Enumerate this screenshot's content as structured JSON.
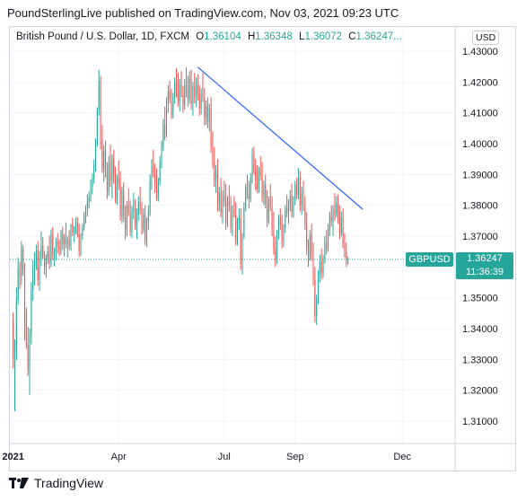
{
  "header": {
    "publisher": "PoundSterlingLive published on TradingView.com, Nov 03, 2021 09:23 UTC"
  },
  "legend": {
    "title": "British Pound / U.S. Dollar, 1D, FXCM",
    "o_label": "O",
    "o_value": "1.36104",
    "h_label": "H",
    "h_value": "1.36348",
    "l_label": "L",
    "l_value": "1.36072",
    "c_label": "C",
    "c_value": "1.36247...",
    "value_color": "#26a69a"
  },
  "currency_button": "USD",
  "symbol_tag": "GBPUSD",
  "price_tag": {
    "price": "1.36247",
    "countdown": "11:36:39"
  },
  "footer": {
    "brand": "TradingView",
    "logo_icon": "tradingview-logo-icon"
  },
  "colors": {
    "up": "#26a69a",
    "down": "#ef5350",
    "trendline": "#2962ff",
    "last_price": "#26a69a"
  },
  "chart_data": {
    "type": "candlestick",
    "y_ticks": [
      "1.43000",
      "1.42000",
      "1.41000",
      "1.40000",
      "1.39000",
      "1.38000",
      "1.37000",
      "1.36000",
      "1.35000",
      "1.34000",
      "1.33000",
      "1.32000",
      "1.31000"
    ],
    "ylim": [
      1.303,
      1.436
    ],
    "x_labels": [
      {
        "label": "2021",
        "x": 0,
        "bold": true
      },
      {
        "label": "Apr",
        "x": 64
      },
      {
        "label": "Jul",
        "x": 128
      },
      {
        "label": "Sep",
        "x": 171
      },
      {
        "label": "Dec",
        "x": 236
      }
    ],
    "xlim": [
      -2,
      268
    ],
    "last_price": 1.36247,
    "trendline": {
      "from": [
        112,
        1.4248
      ],
      "to": [
        212,
        1.3787
      ]
    },
    "candles": [
      [
        1.3424,
        1.3452,
        1.3271,
        1.3305
      ],
      [
        1.3305,
        1.3365,
        1.3132,
        1.332
      ],
      [
        1.332,
        1.3534,
        1.3298,
        1.3494
      ],
      [
        1.3494,
        1.363,
        1.3478,
        1.3596
      ],
      [
        1.3596,
        1.3617,
        1.3527,
        1.3572
      ],
      [
        1.3572,
        1.3684,
        1.3542,
        1.3658
      ],
      [
        1.3658,
        1.3672,
        1.3571,
        1.3591
      ],
      [
        1.3591,
        1.3613,
        1.3361,
        1.3453
      ],
      [
        1.3453,
        1.3468,
        1.3334,
        1.3348
      ],
      [
        1.3348,
        1.3406,
        1.3247,
        1.3265
      ],
      [
        1.3265,
        1.34,
        1.3185,
        1.3382
      ],
      [
        1.3382,
        1.3551,
        1.3349,
        1.3525
      ],
      [
        1.3525,
        1.3622,
        1.3491,
        1.3592
      ],
      [
        1.3592,
        1.3647,
        1.354,
        1.3613
      ],
      [
        1.3613,
        1.3672,
        1.359,
        1.3654
      ],
      [
        1.3654,
        1.3683,
        1.3538,
        1.3559
      ],
      [
        1.3559,
        1.3652,
        1.3523,
        1.3628
      ],
      [
        1.3628,
        1.3715,
        1.3603,
        1.367
      ],
      [
        1.367,
        1.3697,
        1.3627,
        1.3634
      ],
      [
        1.3634,
        1.3652,
        1.3576,
        1.3601
      ],
      [
        1.3601,
        1.3642,
        1.3564,
        1.362
      ],
      [
        1.362,
        1.3668,
        1.3609,
        1.3651
      ],
      [
        1.3651,
        1.3702,
        1.3593,
        1.3612
      ],
      [
        1.3612,
        1.3722,
        1.36,
        1.3705
      ],
      [
        1.3705,
        1.3729,
        1.3622,
        1.3639
      ],
      [
        1.3639,
        1.3662,
        1.3602,
        1.3645
      ],
      [
        1.3645,
        1.3694,
        1.362,
        1.3682
      ],
      [
        1.3682,
        1.371,
        1.3643,
        1.3671
      ],
      [
        1.3671,
        1.369,
        1.3635,
        1.3655
      ],
      [
        1.3655,
        1.372,
        1.364,
        1.3708
      ],
      [
        1.3708,
        1.373,
        1.3655,
        1.3672
      ],
      [
        1.3672,
        1.3706,
        1.3634,
        1.3698
      ],
      [
        1.3698,
        1.3745,
        1.366,
        1.3674
      ],
      [
        1.3674,
        1.37,
        1.363,
        1.3689
      ],
      [
        1.3689,
        1.372,
        1.3655,
        1.3665
      ],
      [
        1.3665,
        1.374,
        1.3652,
        1.3735
      ],
      [
        1.3735,
        1.376,
        1.37,
        1.3712
      ],
      [
        1.3712,
        1.3733,
        1.368,
        1.3728
      ],
      [
        1.3728,
        1.376,
        1.3705,
        1.3745
      ],
      [
        1.3745,
        1.3763,
        1.3695,
        1.3706
      ],
      [
        1.3706,
        1.374,
        1.3632,
        1.3652
      ],
      [
        1.3652,
        1.3709,
        1.3635,
        1.3703
      ],
      [
        1.3703,
        1.374,
        1.3688,
        1.3727
      ],
      [
        1.3727,
        1.378,
        1.3718,
        1.3764
      ],
      [
        1.3764,
        1.38,
        1.3741,
        1.3792
      ],
      [
        1.3792,
        1.3835,
        1.3764,
        1.3812
      ],
      [
        1.3812,
        1.3845,
        1.3789,
        1.3825
      ],
      [
        1.3825,
        1.3883,
        1.3811,
        1.386
      ],
      [
        1.386,
        1.3903,
        1.3835,
        1.3888
      ],
      [
        1.3888,
        1.3948,
        1.387,
        1.393
      ],
      [
        1.393,
        1.4017,
        1.391,
        1.4
      ],
      [
        1.4,
        1.4118,
        1.399,
        1.411
      ],
      [
        1.411,
        1.424,
        1.409,
        1.4205
      ],
      [
        1.4205,
        1.422,
        1.398,
        1.4015
      ],
      [
        1.4015,
        1.406,
        1.3905,
        1.392
      ],
      [
        1.392,
        1.3995,
        1.3875,
        1.3975
      ],
      [
        1.3975,
        1.401,
        1.389,
        1.3905
      ],
      [
        1.3905,
        1.394,
        1.382,
        1.3845
      ],
      [
        1.3845,
        1.396,
        1.383,
        1.394
      ],
      [
        1.394,
        1.3998,
        1.386,
        1.388
      ],
      [
        1.388,
        1.3965,
        1.3822,
        1.3952
      ],
      [
        1.3952,
        1.398,
        1.387,
        1.3896
      ],
      [
        1.3896,
        1.3925,
        1.3806,
        1.3822
      ],
      [
        1.3822,
        1.39,
        1.3801,
        1.3888
      ],
      [
        1.3888,
        1.3946,
        1.385,
        1.3869
      ],
      [
        1.3869,
        1.391,
        1.375,
        1.3765
      ],
      [
        1.3765,
        1.386,
        1.374,
        1.385
      ],
      [
        1.385,
        1.3875,
        1.3746,
        1.376
      ],
      [
        1.376,
        1.38,
        1.3689,
        1.372
      ],
      [
        1.372,
        1.3815,
        1.37,
        1.38
      ],
      [
        1.38,
        1.3855,
        1.3765,
        1.3775
      ],
      [
        1.3775,
        1.3815,
        1.37,
        1.3715
      ],
      [
        1.3715,
        1.3798,
        1.3694,
        1.3782
      ],
      [
        1.3782,
        1.384,
        1.3755,
        1.379
      ],
      [
        1.379,
        1.382,
        1.372,
        1.3735
      ],
      [
        1.3735,
        1.379,
        1.369,
        1.377
      ],
      [
        1.377,
        1.383,
        1.375,
        1.3812
      ],
      [
        1.3812,
        1.386,
        1.377,
        1.3785
      ],
      [
        1.3785,
        1.381,
        1.3705,
        1.3725
      ],
      [
        1.3725,
        1.379,
        1.371,
        1.377
      ],
      [
        1.377,
        1.38,
        1.367,
        1.369
      ],
      [
        1.369,
        1.376,
        1.3665,
        1.3748
      ],
      [
        1.3748,
        1.38,
        1.372,
        1.378
      ],
      [
        1.378,
        1.39,
        1.3765,
        1.388
      ],
      [
        1.388,
        1.395,
        1.385,
        1.3925
      ],
      [
        1.3925,
        1.398,
        1.389,
        1.3905
      ],
      [
        1.3905,
        1.3935,
        1.384,
        1.387
      ],
      [
        1.387,
        1.392,
        1.3815,
        1.383
      ],
      [
        1.383,
        1.389,
        1.3812,
        1.3878
      ],
      [
        1.3878,
        1.396,
        1.3865,
        1.394
      ],
      [
        1.394,
        1.401,
        1.392,
        1.399
      ],
      [
        1.399,
        1.408,
        1.3975,
        1.406
      ],
      [
        1.406,
        1.412,
        1.401,
        1.403
      ],
      [
        1.403,
        1.415,
        1.402,
        1.4135
      ],
      [
        1.4135,
        1.419,
        1.41,
        1.417
      ],
      [
        1.417,
        1.4205,
        1.413,
        1.4145
      ],
      [
        1.4145,
        1.4178,
        1.408,
        1.4095
      ],
      [
        1.4095,
        1.4165,
        1.4082,
        1.415
      ],
      [
        1.415,
        1.4215,
        1.413,
        1.42
      ],
      [
        1.42,
        1.4245,
        1.415,
        1.417
      ],
      [
        1.417,
        1.423,
        1.412,
        1.414
      ],
      [
        1.414,
        1.421,
        1.4105,
        1.4195
      ],
      [
        1.4195,
        1.4235,
        1.415,
        1.416
      ],
      [
        1.416,
        1.4188,
        1.41,
        1.4125
      ],
      [
        1.4125,
        1.421,
        1.411,
        1.419
      ],
      [
        1.419,
        1.4248,
        1.415,
        1.418
      ],
      [
        1.418,
        1.422,
        1.412,
        1.4145
      ],
      [
        1.4145,
        1.4235,
        1.413,
        1.421
      ],
      [
        1.421,
        1.424,
        1.411,
        1.413
      ],
      [
        1.413,
        1.42,
        1.409,
        1.4185
      ],
      [
        1.4185,
        1.423,
        1.413,
        1.415
      ],
      [
        1.415,
        1.4215,
        1.412,
        1.4192
      ],
      [
        1.4192,
        1.4225,
        1.414,
        1.416
      ],
      [
        1.416,
        1.419,
        1.409,
        1.4115
      ],
      [
        1.4115,
        1.418,
        1.4095,
        1.4165
      ],
      [
        1.4165,
        1.423,
        1.4135,
        1.415
      ],
      [
        1.415,
        1.418,
        1.406,
        1.4085
      ],
      [
        1.4085,
        1.414,
        1.406,
        1.412
      ],
      [
        1.412,
        1.415,
        1.405,
        1.407
      ],
      [
        1.407,
        1.413,
        1.404,
        1.4115
      ],
      [
        1.4115,
        1.415,
        1.397,
        1.399
      ],
      [
        1.399,
        1.404,
        1.392,
        1.394
      ],
      [
        1.394,
        1.399,
        1.386,
        1.388
      ],
      [
        1.388,
        1.393,
        1.384,
        1.391
      ],
      [
        1.391,
        1.395,
        1.378,
        1.3805
      ],
      [
        1.3805,
        1.386,
        1.378,
        1.384
      ],
      [
        1.384,
        1.389,
        1.376,
        1.3775
      ],
      [
        1.3775,
        1.385,
        1.374,
        1.383
      ],
      [
        1.383,
        1.388,
        1.3795,
        1.381
      ],
      [
        1.381,
        1.387,
        1.372,
        1.374
      ],
      [
        1.374,
        1.383,
        1.373,
        1.3815
      ],
      [
        1.3815,
        1.3865,
        1.378,
        1.3795
      ],
      [
        1.3795,
        1.383,
        1.371,
        1.3725
      ],
      [
        1.3725,
        1.38,
        1.37,
        1.3785
      ],
      [
        1.3785,
        1.383,
        1.376,
        1.377
      ],
      [
        1.377,
        1.381,
        1.367,
        1.369
      ],
      [
        1.369,
        1.376,
        1.367,
        1.3745
      ],
      [
        1.3745,
        1.379,
        1.372,
        1.376
      ],
      [
        1.376,
        1.379,
        1.359,
        1.361
      ],
      [
        1.361,
        1.371,
        1.3575,
        1.37
      ],
      [
        1.37,
        1.381,
        1.369,
        1.3795
      ],
      [
        1.3795,
        1.387,
        1.378,
        1.386
      ],
      [
        1.386,
        1.39,
        1.382,
        1.384
      ],
      [
        1.384,
        1.388,
        1.379,
        1.382
      ],
      [
        1.382,
        1.3905,
        1.381,
        1.389
      ],
      [
        1.389,
        1.3985,
        1.387,
        1.396
      ],
      [
        1.396,
        1.399,
        1.39,
        1.3915
      ],
      [
        1.3915,
        1.395,
        1.385,
        1.388
      ],
      [
        1.388,
        1.393,
        1.384,
        1.3855
      ],
      [
        1.3855,
        1.3925,
        1.384,
        1.3915
      ],
      [
        1.3915,
        1.396,
        1.388,
        1.39
      ],
      [
        1.39,
        1.394,
        1.381,
        1.383
      ],
      [
        1.383,
        1.388,
        1.38,
        1.3865
      ],
      [
        1.3865,
        1.39,
        1.379,
        1.3805
      ],
      [
        1.3805,
        1.385,
        1.373,
        1.375
      ],
      [
        1.375,
        1.383,
        1.374,
        1.382
      ],
      [
        1.382,
        1.387,
        1.378,
        1.3795
      ],
      [
        1.3795,
        1.383,
        1.37,
        1.372
      ],
      [
        1.372,
        1.378,
        1.364,
        1.366
      ],
      [
        1.366,
        1.37,
        1.36,
        1.362
      ],
      [
        1.362,
        1.372,
        1.361,
        1.3705
      ],
      [
        1.3705,
        1.377,
        1.369,
        1.376
      ],
      [
        1.376,
        1.379,
        1.372,
        1.3735
      ],
      [
        1.3735,
        1.377,
        1.366,
        1.368
      ],
      [
        1.368,
        1.374,
        1.3665,
        1.3725
      ],
      [
        1.3725,
        1.38,
        1.371,
        1.379
      ],
      [
        1.379,
        1.3835,
        1.376,
        1.3775
      ],
      [
        1.3775,
        1.382,
        1.374,
        1.38
      ],
      [
        1.38,
        1.385,
        1.378,
        1.383
      ],
      [
        1.383,
        1.387,
        1.376,
        1.378
      ],
      [
        1.378,
        1.383,
        1.376,
        1.3815
      ],
      [
        1.3815,
        1.388,
        1.38,
        1.3865
      ],
      [
        1.3865,
        1.389,
        1.382,
        1.3835
      ],
      [
        1.3835,
        1.392,
        1.382,
        1.389
      ],
      [
        1.389,
        1.391,
        1.378,
        1.38
      ],
      [
        1.38,
        1.386,
        1.377,
        1.384
      ],
      [
        1.384,
        1.388,
        1.378,
        1.3795
      ],
      [
        1.3795,
        1.383,
        1.372,
        1.374
      ],
      [
        1.374,
        1.378,
        1.364,
        1.366
      ],
      [
        1.366,
        1.369,
        1.36,
        1.363
      ],
      [
        1.363,
        1.372,
        1.362,
        1.3705
      ],
      [
        1.3705,
        1.374,
        1.362,
        1.364
      ],
      [
        1.364,
        1.368,
        1.354,
        1.356
      ],
      [
        1.356,
        1.36,
        1.342,
        1.344
      ],
      [
        1.344,
        1.351,
        1.3412,
        1.3495
      ],
      [
        1.3495,
        1.359,
        1.348,
        1.3575
      ],
      [
        1.3575,
        1.364,
        1.355,
        1.362
      ],
      [
        1.362,
        1.366,
        1.356,
        1.358
      ],
      [
        1.358,
        1.364,
        1.3565,
        1.3625
      ],
      [
        1.3625,
        1.37,
        1.361,
        1.368
      ],
      [
        1.368,
        1.372,
        1.364,
        1.366
      ],
      [
        1.366,
        1.374,
        1.365,
        1.372
      ],
      [
        1.372,
        1.378,
        1.37,
        1.3765
      ],
      [
        1.3765,
        1.38,
        1.373,
        1.3745
      ],
      [
        1.3745,
        1.38,
        1.37,
        1.3785
      ],
      [
        1.3785,
        1.384,
        1.375,
        1.377
      ],
      [
        1.377,
        1.383,
        1.376,
        1.381
      ],
      [
        1.381,
        1.3835,
        1.374,
        1.376
      ],
      [
        1.376,
        1.38,
        1.369,
        1.371
      ],
      [
        1.371,
        1.378,
        1.37,
        1.376
      ],
      [
        1.376,
        1.379,
        1.366,
        1.368
      ],
      [
        1.368,
        1.371,
        1.363,
        1.365
      ],
      [
        1.365,
        1.368,
        1.36,
        1.3625
      ],
      [
        1.361,
        1.3635,
        1.3607,
        1.3625
      ]
    ]
  }
}
